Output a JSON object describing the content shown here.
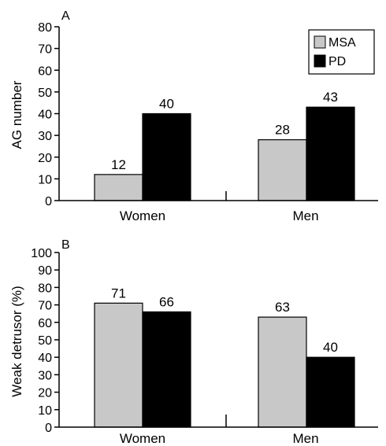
{
  "colors": {
    "MSA": "#c8c8c8",
    "PD": "#000000"
  },
  "chart_data": [
    {
      "type": "bar",
      "panel_label": "A",
      "categories": [
        "Women",
        "Men"
      ],
      "series": [
        {
          "name": "MSA",
          "values": [
            12,
            28
          ]
        },
        {
          "name": "PD",
          "values": [
            40,
            43
          ]
        }
      ],
      "data_labels": [
        [
          "12",
          "40"
        ],
        [
          "28",
          "43"
        ]
      ],
      "xlabel": "",
      "ylabel": "AG number",
      "ylim": [
        0,
        80
      ],
      "yticks": [
        0,
        10,
        20,
        30,
        40,
        50,
        60,
        70,
        80
      ],
      "grid": false,
      "legend": {
        "placement": "top-right",
        "entries": [
          "MSA",
          "PD"
        ]
      }
    },
    {
      "type": "bar",
      "panel_label": "B",
      "categories": [
        "Women",
        "Men"
      ],
      "series": [
        {
          "name": "MSA",
          "values": [
            71,
            63
          ]
        },
        {
          "name": "PD",
          "values": [
            66,
            40
          ]
        }
      ],
      "data_labels": [
        [
          "71",
          "66"
        ],
        [
          "63",
          "40"
        ]
      ],
      "xlabel": "",
      "ylabel": "Weak detrusor (%)",
      "ylim": [
        0,
        100
      ],
      "yticks": [
        0,
        10,
        20,
        30,
        40,
        50,
        60,
        70,
        80,
        90,
        100
      ],
      "grid": false,
      "legend": null
    }
  ]
}
